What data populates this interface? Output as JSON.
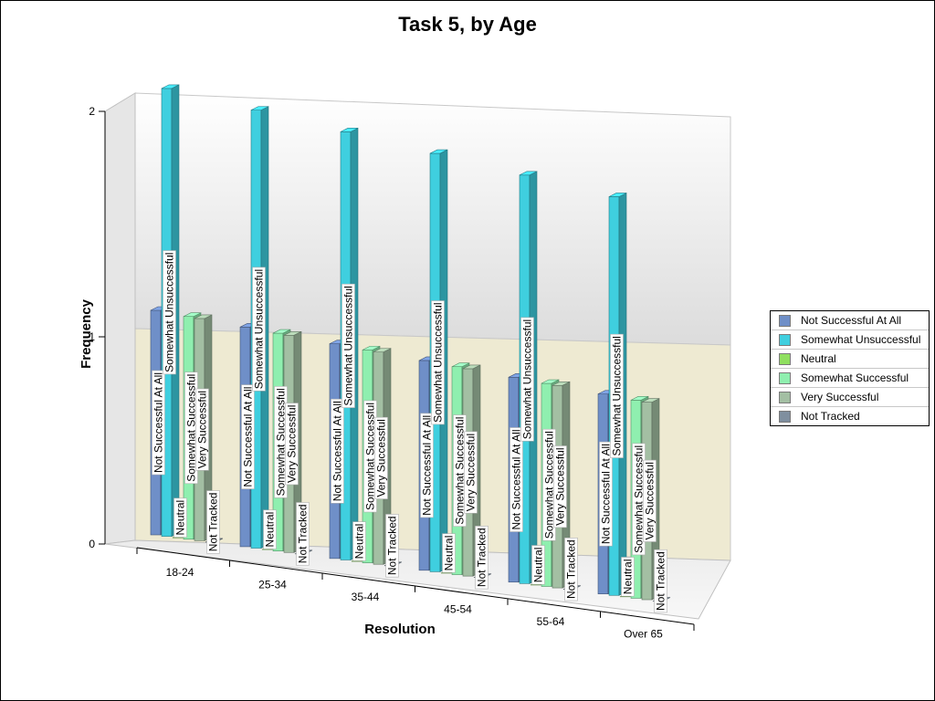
{
  "chart_data": {
    "type": "bar",
    "title": "Task 5, by Age",
    "xlabel": "Resolution",
    "ylabel": "Frequency",
    "ylim": [
      0,
      2
    ],
    "yticks": [
      "0",
      "1",
      "2"
    ],
    "categories": [
      "18-24",
      "25-34",
      "35-44",
      "45-54",
      "55-64",
      "Over 65"
    ],
    "series": [
      {
        "name": "Not Successful At All",
        "color": "#6f8fc8",
        "values": [
          1,
          1,
          1,
          1,
          1,
          1
        ]
      },
      {
        "name": "Somewhat Unsuccessful",
        "color": "#3fcfdf",
        "values": [
          2,
          2,
          2,
          2,
          2,
          2
        ]
      },
      {
        "name": "Neutral",
        "color": "#8fdf5f",
        "values": [
          0,
          0,
          0,
          0,
          0,
          0
        ]
      },
      {
        "name": "Somewhat Successful",
        "color": "#8fefaf",
        "values": [
          1,
          1,
          1,
          1,
          1,
          1
        ]
      },
      {
        "name": "Very Successful",
        "color": "#a3bfa3",
        "values": [
          1,
          1,
          1,
          1,
          1,
          1
        ]
      },
      {
        "name": "Not Tracked",
        "color": "#7f8f9f",
        "values": [
          0,
          0,
          0,
          0,
          0,
          0
        ]
      }
    ],
    "legend_position": "right",
    "grid": false,
    "style": "3d"
  }
}
